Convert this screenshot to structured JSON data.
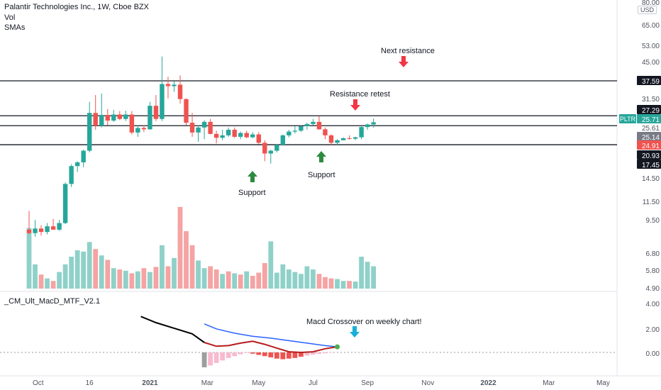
{
  "header": {
    "title": "Palantir Technologies Inc., 1W, Cboe BZX",
    "vol_label": "Vol",
    "smas_label": "SMAs",
    "currency": "USD"
  },
  "indicator": {
    "title": "_CM_Ult_MacD_MTF_V2.1"
  },
  "annotations": {
    "next_resistance": "Next resistance",
    "resistance_retest": "Resistance retest",
    "support_may": "Support",
    "support_jul": "Support",
    "macd_note": "Macd Crossover on weekly chart!"
  },
  "colors": {
    "up": "#26a69a",
    "down": "#ef5350",
    "up_vol": "#8fd1c9",
    "down_vol": "#f5a3a3",
    "arrow_red": "#f23645",
    "arrow_green": "#2e8b3e",
    "arrow_blue": "#18b0d6",
    "macd_black": "#000000",
    "macd_red": "#b71c1c",
    "signal_blue": "#2962ff"
  },
  "chart_data": {
    "type": "candlestick",
    "title": "Palantir Technologies Inc., 1W, Cboe BZX",
    "price_scale": "log",
    "price_axis_ticks": [
      80.0,
      65.0,
      53.0,
      45.0,
      37.59,
      31.5,
      27.29,
      25.71,
      25.61,
      25.14,
      24.91,
      20.93,
      17.45,
      14.5,
      11.5,
      9.5,
      6.8,
      5.8,
      4.9
    ],
    "price_axis_labels": [
      "80.00",
      "65.00",
      "53.00",
      "45.00",
      "37.59",
      "31.50",
      "27.29",
      "25.71",
      "25.61",
      "25.14",
      "24.91",
      "20.93",
      "17.45",
      "14.50",
      "11.50",
      "9.50",
      "6.80",
      "5.80",
      "4.90"
    ],
    "highlighted_labels": [
      {
        "text": "37.59",
        "style": "black"
      },
      {
        "text": "27.29",
        "style": "black"
      },
      {
        "text": "25.71",
        "style": "teal"
      },
      {
        "text": "25.61",
        "style": "plain"
      },
      {
        "text": "25.14",
        "style": "gray"
      },
      {
        "text": "24.91",
        "style": "red"
      },
      {
        "text": "20.93",
        "style": "black"
      },
      {
        "text": "17.45",
        "style": "black"
      }
    ],
    "ticker_tag": "PLTR",
    "time_axis_labels": [
      "Oct",
      "16",
      "2021",
      "Mar",
      "May",
      "Jul",
      "Sep",
      "Nov",
      "2022",
      "Mar",
      "May"
    ],
    "time_axis_bars": [
      1.5,
      10,
      20,
      29.5,
      38,
      47,
      56,
      66,
      76,
      86,
      95
    ],
    "horizontal_levels": [
      37.59,
      27.29,
      24.91,
      20.93
    ],
    "candles": [
      {
        "o": 9.6,
        "h": 11.4,
        "l": 9.2,
        "c": 9.3
      },
      {
        "o": 9.3,
        "h": 10.5,
        "l": 9.0,
        "c": 9.7
      },
      {
        "o": 9.7,
        "h": 10.0,
        "l": 9.1,
        "c": 9.4
      },
      {
        "o": 9.4,
        "h": 10.2,
        "l": 9.2,
        "c": 9.9
      },
      {
        "o": 9.9,
        "h": 10.6,
        "l": 9.6,
        "c": 9.6
      },
      {
        "o": 9.6,
        "h": 10.5,
        "l": 9.5,
        "c": 10.2
      },
      {
        "o": 10.2,
        "h": 14.8,
        "l": 10.1,
        "c": 14.6
      },
      {
        "o": 14.6,
        "h": 17.5,
        "l": 14.2,
        "c": 17.2
      },
      {
        "o": 17.2,
        "h": 18.0,
        "l": 16.3,
        "c": 17.8
      },
      {
        "o": 17.8,
        "h": 20.0,
        "l": 17.0,
        "c": 19.8
      },
      {
        "o": 19.8,
        "h": 31.0,
        "l": 19.5,
        "c": 28.0
      },
      {
        "o": 28.0,
        "h": 33.0,
        "l": 24.0,
        "c": 24.9
      },
      {
        "o": 24.9,
        "h": 33.5,
        "l": 24.5,
        "c": 27.5
      },
      {
        "o": 27.5,
        "h": 29.0,
        "l": 25.0,
        "c": 26.1
      },
      {
        "o": 26.1,
        "h": 28.8,
        "l": 25.8,
        "c": 27.6
      },
      {
        "o": 27.6,
        "h": 28.5,
        "l": 26.2,
        "c": 26.5
      },
      {
        "o": 26.5,
        "h": 28.6,
        "l": 26.0,
        "c": 27.6
      },
      {
        "o": 27.6,
        "h": 28.5,
        "l": 23.0,
        "c": 23.4
      },
      {
        "o": 23.4,
        "h": 25.0,
        "l": 22.5,
        "c": 24.4
      },
      {
        "o": 24.4,
        "h": 25.0,
        "l": 23.5,
        "c": 24.1
      },
      {
        "o": 24.1,
        "h": 31.0,
        "l": 24.0,
        "c": 29.9
      },
      {
        "o": 29.9,
        "h": 33.0,
        "l": 26.0,
        "c": 26.5
      },
      {
        "o": 26.5,
        "h": 47.0,
        "l": 26.0,
        "c": 36.5
      },
      {
        "o": 36.5,
        "h": 39.0,
        "l": 32.0,
        "c": 35.8
      },
      {
        "o": 35.8,
        "h": 37.5,
        "l": 34.0,
        "c": 36.3
      },
      {
        "o": 36.3,
        "h": 39.5,
        "l": 30.5,
        "c": 31.8
      },
      {
        "o": 31.8,
        "h": 32.0,
        "l": 25.0,
        "c": 25.6
      },
      {
        "o": 25.6,
        "h": 28.0,
        "l": 22.5,
        "c": 23.4
      },
      {
        "o": 23.4,
        "h": 25.0,
        "l": 21.5,
        "c": 24.5
      },
      {
        "o": 24.5,
        "h": 26.2,
        "l": 22.0,
        "c": 25.8
      },
      {
        "o": 25.8,
        "h": 26.5,
        "l": 23.0,
        "c": 23.1
      },
      {
        "o": 23.1,
        "h": 23.8,
        "l": 21.2,
        "c": 22.3
      },
      {
        "o": 22.3,
        "h": 24.0,
        "l": 21.8,
        "c": 22.8
      },
      {
        "o": 22.8,
        "h": 24.5,
        "l": 22.5,
        "c": 24.0
      },
      {
        "o": 24.0,
        "h": 24.5,
        "l": 22.3,
        "c": 22.5
      },
      {
        "o": 22.5,
        "h": 23.6,
        "l": 22.0,
        "c": 23.3
      },
      {
        "o": 23.3,
        "h": 23.8,
        "l": 22.2,
        "c": 22.4
      },
      {
        "o": 22.4,
        "h": 23.5,
        "l": 22.2,
        "c": 23.0
      },
      {
        "o": 23.0,
        "h": 23.5,
        "l": 21.0,
        "c": 21.3
      },
      {
        "o": 21.3,
        "h": 21.8,
        "l": 18.0,
        "c": 19.3
      },
      {
        "o": 19.3,
        "h": 20.0,
        "l": 17.6,
        "c": 19.8
      },
      {
        "o": 19.8,
        "h": 21.0,
        "l": 19.5,
        "c": 20.9
      },
      {
        "o": 20.9,
        "h": 23.0,
        "l": 20.7,
        "c": 22.8
      },
      {
        "o": 22.8,
        "h": 24.0,
        "l": 22.4,
        "c": 23.6
      },
      {
        "o": 23.6,
        "h": 24.8,
        "l": 23.2,
        "c": 23.8
      },
      {
        "o": 23.8,
        "h": 25.0,
        "l": 23.5,
        "c": 24.8
      },
      {
        "o": 24.8,
        "h": 25.6,
        "l": 24.0,
        "c": 25.3
      },
      {
        "o": 25.3,
        "h": 26.5,
        "l": 25.0,
        "c": 25.8
      },
      {
        "o": 25.8,
        "h": 27.2,
        "l": 24.0,
        "c": 24.1
      },
      {
        "o": 24.1,
        "h": 24.5,
        "l": 22.0,
        "c": 22.8
      },
      {
        "o": 22.8,
        "h": 23.0,
        "l": 20.9,
        "c": 21.3
      },
      {
        "o": 21.3,
        "h": 22.0,
        "l": 20.9,
        "c": 21.8
      },
      {
        "o": 21.8,
        "h": 22.4,
        "l": 21.8,
        "c": 22.2
      },
      {
        "o": 22.2,
        "h": 22.8,
        "l": 21.9,
        "c": 22.1
      },
      {
        "o": 22.1,
        "h": 22.5,
        "l": 21.8,
        "c": 22.4
      },
      {
        "o": 22.4,
        "h": 24.9,
        "l": 22.0,
        "c": 24.6
      },
      {
        "o": 24.6,
        "h": 25.4,
        "l": 24.0,
        "c": 25.2
      },
      {
        "o": 25.2,
        "h": 26.6,
        "l": 24.5,
        "c": 25.71
      }
    ],
    "volume_up": [
      true,
      true,
      false,
      true,
      false,
      true,
      true,
      true,
      true,
      true,
      true,
      false,
      true,
      false,
      true,
      false,
      true,
      false,
      true,
      false,
      true,
      false,
      true,
      false,
      true,
      false,
      false,
      false,
      true,
      true,
      false,
      false,
      true,
      false,
      true,
      false,
      true,
      false,
      false,
      false,
      true,
      true,
      true,
      true,
      true,
      true,
      true,
      true,
      false,
      false,
      false,
      true,
      true,
      false,
      true,
      true,
      true,
      true
    ],
    "volume_rel": [
      0.95,
      0.38,
      0.22,
      0.16,
      0.12,
      0.26,
      0.38,
      0.5,
      0.6,
      0.58,
      0.73,
      0.62,
      0.52,
      0.45,
      0.32,
      0.3,
      0.28,
      0.24,
      0.27,
      0.32,
      0.26,
      0.34,
      0.68,
      0.35,
      0.48,
      1.28,
      0.9,
      0.68,
      0.44,
      0.32,
      0.35,
      0.3,
      0.23,
      0.27,
      0.24,
      0.22,
      0.27,
      0.2,
      0.25,
      0.4,
      0.74,
      0.25,
      0.38,
      0.3,
      0.26,
      0.23,
      0.35,
      0.3,
      0.23,
      0.18,
      0.16,
      0.15,
      0.12,
      0.12,
      0.11,
      0.5,
      0.42,
      0.35
    ],
    "macd": {
      "zero_label": "0.00",
      "axis_ticks": [
        4.0,
        2.0,
        0.0
      ],
      "axis_labels": [
        "4.00",
        "2.00",
        "0.00"
      ],
      "macd_line": [
        {
          "bar": 18.5,
          "v": 2.9
        },
        {
          "bar": 21,
          "v": 2.4
        },
        {
          "bar": 24,
          "v": 1.95
        },
        {
          "bar": 27,
          "v": 1.5
        },
        {
          "bar": 29,
          "v": 0.8
        },
        {
          "bar": 31,
          "v": 0.5
        },
        {
          "bar": 33,
          "v": 0.55
        },
        {
          "bar": 35,
          "v": 0.75
        },
        {
          "bar": 37,
          "v": 0.9
        },
        {
          "bar": 39,
          "v": 0.65
        },
        {
          "bar": 41,
          "v": 0.35
        },
        {
          "bar": 43,
          "v": 0.05
        },
        {
          "bar": 45,
          "v": 0.0
        },
        {
          "bar": 47,
          "v": 0.05
        },
        {
          "bar": 49,
          "v": 0.3
        },
        {
          "bar": 51,
          "v": 0.45
        }
      ],
      "macd_black_until_bar": 28,
      "signal_line": [
        {
          "bar": 29,
          "v": 2.3
        },
        {
          "bar": 31,
          "v": 1.9
        },
        {
          "bar": 34,
          "v": 1.55
        },
        {
          "bar": 37,
          "v": 1.3
        },
        {
          "bar": 40,
          "v": 1.15
        },
        {
          "bar": 43,
          "v": 0.95
        },
        {
          "bar": 46,
          "v": 0.75
        },
        {
          "bar": 49,
          "v": 0.55
        },
        {
          "bar": 51,
          "v": 0.45
        }
      ],
      "crossover_bar": 51,
      "histogram": [
        {
          "bar": 29,
          "v": -1.2,
          "shade": "gray"
        },
        {
          "bar": 30,
          "v": -1.05,
          "shade": "light"
        },
        {
          "bar": 31,
          "v": -0.85,
          "shade": "light"
        },
        {
          "bar": 32,
          "v": -0.65,
          "shade": "light"
        },
        {
          "bar": 33,
          "v": -0.45,
          "shade": "light"
        },
        {
          "bar": 34,
          "v": -0.3,
          "shade": "light"
        },
        {
          "bar": 35,
          "v": -0.15,
          "shade": "light"
        },
        {
          "bar": 36,
          "v": -0.05,
          "shade": "light"
        },
        {
          "bar": 37,
          "v": -0.1,
          "shade": "dark"
        },
        {
          "bar": 38,
          "v": -0.2,
          "shade": "dark"
        },
        {
          "bar": 39,
          "v": -0.3,
          "shade": "dark"
        },
        {
          "bar": 40,
          "v": -0.4,
          "shade": "dark"
        },
        {
          "bar": 41,
          "v": -0.5,
          "shade": "dark"
        },
        {
          "bar": 42,
          "v": -0.55,
          "shade": "dark"
        },
        {
          "bar": 43,
          "v": -0.5,
          "shade": "dark"
        },
        {
          "bar": 44,
          "v": -0.45,
          "shade": "dark"
        },
        {
          "bar": 45,
          "v": -0.35,
          "shade": "dark"
        },
        {
          "bar": 46,
          "v": -0.25,
          "shade": "light"
        },
        {
          "bar": 47,
          "v": -0.18,
          "shade": "light"
        },
        {
          "bar": 48,
          "v": -0.12,
          "shade": "light"
        },
        {
          "bar": 49,
          "v": -0.07,
          "shade": "light"
        },
        {
          "bar": 50,
          "v": -0.03,
          "shade": "light"
        }
      ]
    }
  }
}
